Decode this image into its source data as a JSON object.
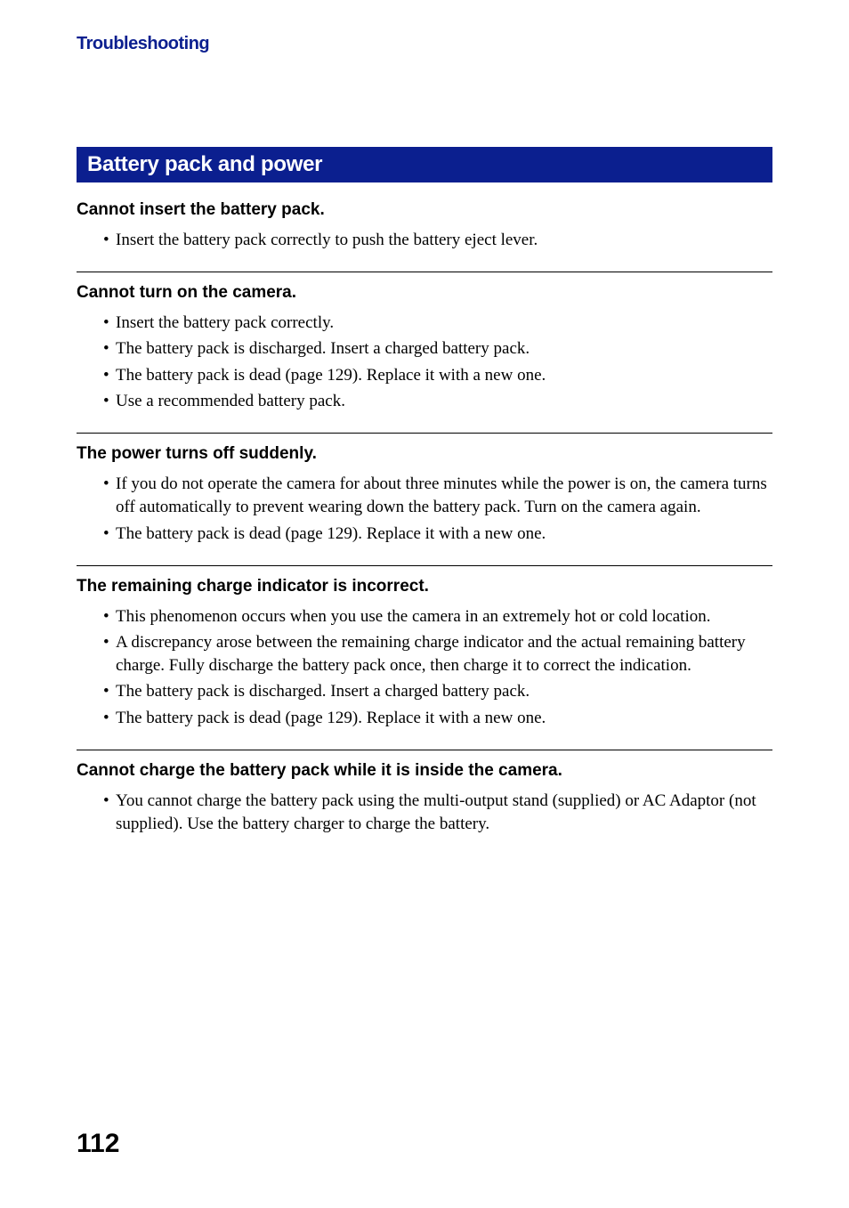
{
  "colors": {
    "header_bg": "#0b1f8f",
    "breadcrumb_color": "#0b1f8f",
    "text_color": "#000000",
    "header_text": "#ffffff"
  },
  "breadcrumb": "Troubleshooting",
  "section_header": "Battery pack and power",
  "issues": [
    {
      "title": "Cannot insert the battery pack.",
      "bullets": [
        "Insert the battery pack correctly to push the battery eject lever."
      ]
    },
    {
      "title": "Cannot turn on the camera.",
      "bullets": [
        "Insert the battery pack correctly.",
        "The battery pack is discharged. Insert a charged battery pack.",
        "The battery pack is dead (page 129). Replace it with a new one.",
        "Use a recommended battery pack."
      ]
    },
    {
      "title": "The power turns off suddenly.",
      "bullets": [
        "If you do not operate the camera for about three minutes while the power is on, the camera turns off automatically to prevent wearing down the battery pack. Turn on the camera again.",
        "The battery pack is dead (page 129). Replace it with a new one."
      ]
    },
    {
      "title": "The remaining charge indicator is incorrect.",
      "bullets": [
        "This phenomenon occurs when you use the camera in an extremely hot or cold location.",
        "A discrepancy arose between the remaining charge indicator and the actual remaining battery charge. Fully discharge the battery pack once, then charge it to correct the indication.",
        "The battery pack is discharged. Insert a charged battery pack.",
        "The battery pack is dead (page 129). Replace it with a new one."
      ]
    },
    {
      "title": "Cannot charge the battery pack while it is inside the camera.",
      "bullets": [
        "You cannot charge the battery pack using the multi-output stand (supplied) or AC Adaptor (not supplied). Use the battery charger to charge the battery."
      ]
    }
  ],
  "page_number": "112"
}
